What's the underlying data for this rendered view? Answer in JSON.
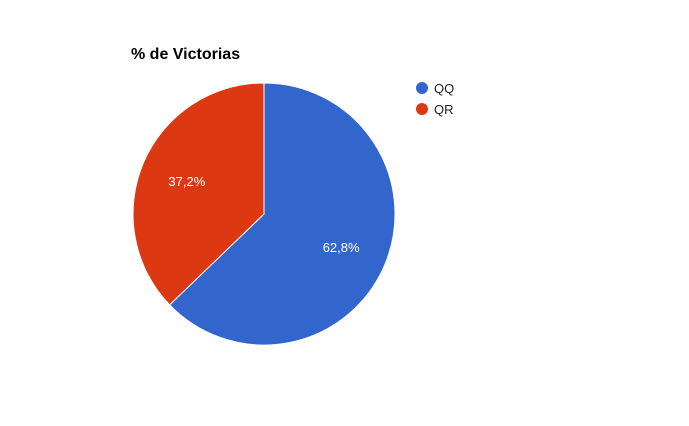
{
  "chart_data": {
    "type": "pie",
    "title": "% de Victorias",
    "legend_position": "right",
    "categories": [
      "QQ",
      "QR"
    ],
    "values": [
      62.8,
      37.2
    ],
    "labels": [
      "62,8%",
      "37,2%"
    ],
    "colors": [
      "#3366cc",
      "#dc3912"
    ]
  }
}
